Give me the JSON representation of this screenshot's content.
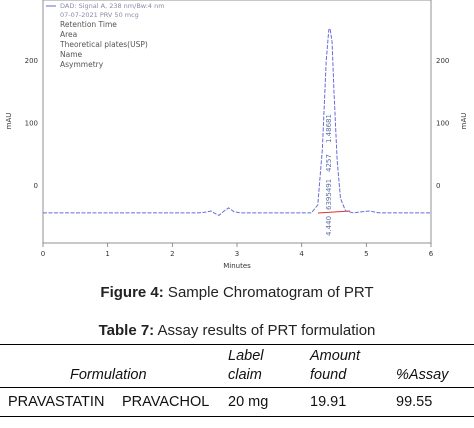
{
  "chart_data": {
    "type": "line",
    "title": "",
    "xlabel": "Minutes",
    "ylabel_left": "mAU",
    "ylabel_right": "mAU",
    "xlim": [
      0,
      6
    ],
    "ylim": [
      -30,
      270
    ],
    "x_ticks": [
      0,
      1,
      2,
      3,
      4,
      5,
      6
    ],
    "y_ticks": [
      0,
      100,
      200
    ],
    "legend": {
      "signal": "DAD: Signal A, 238 nm/Bw:4 nm",
      "sample": "07-07-2021 PRV 50 mcg",
      "items": [
        "Retention Time",
        "Area",
        "Theoretical plates(USP)",
        "Name",
        "Asymmetry"
      ]
    },
    "series": [
      {
        "name": "DAD: Signal A, 238 nm/Bw:4 nm",
        "color": "#6a6ad8",
        "x": [
          0.0,
          1.0,
          2.0,
          2.4,
          2.5,
          2.6,
          2.66,
          2.72,
          2.8,
          2.87,
          2.95,
          3.05,
          3.2,
          3.5,
          3.9,
          4.15,
          4.25,
          4.32,
          4.38,
          4.42,
          4.44,
          4.47,
          4.5,
          4.55,
          4.6,
          4.68,
          4.8,
          4.95,
          5.05,
          5.2,
          5.5,
          6.0
        ],
        "y": [
          -43,
          -43,
          -43,
          -43,
          -42,
          -40,
          -44,
          -47,
          -40,
          -35,
          -41,
          -43,
          -43,
          -43,
          -43,
          -43,
          -30,
          60,
          200,
          250,
          252,
          230,
          150,
          40,
          -20,
          -40,
          -43,
          -41,
          -40,
          -43,
          -43,
          -43
        ]
      }
    ],
    "peak_annotations": [
      "4.440",
      "6395491",
      "4257",
      "1.48681"
    ]
  },
  "figure_caption": {
    "label": "Figure 4:",
    "text": " Sample Chromatogram of PRT"
  },
  "table_caption": {
    "label": "Table 7:",
    "text": " Assay results of PRT formulation"
  },
  "table": {
    "headers": [
      "Formulation",
      "Label claim",
      "Amount found",
      "%Assay"
    ],
    "headers_lines": [
      [
        "Formulation"
      ],
      [
        "Label",
        "claim"
      ],
      [
        "Amount",
        "found"
      ],
      [
        "%Assay"
      ]
    ],
    "rows": [
      [
        "PRAVASTATIN",
        "PRAVACHOL",
        "20 mg",
        "19.91",
        "99.55"
      ]
    ]
  }
}
